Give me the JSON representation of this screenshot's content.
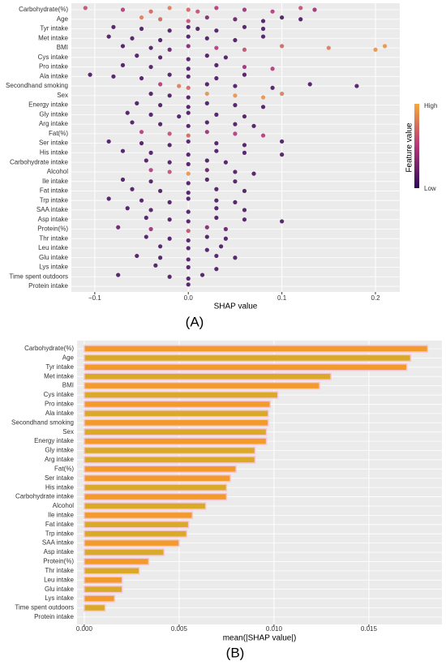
{
  "chart_data": [
    {
      "type": "beeswarm",
      "caption": "(A)",
      "x_label": "SHAP value",
      "categories": [
        "Carbohydrate(%)",
        "Age",
        "Tyr intake",
        "Met intake",
        "BMI",
        "Cys intake",
        "Pro intake",
        "Ala intake",
        "Secondhand smoking",
        "Sex",
        "Energy intake",
        "Gly intake",
        "Arg intake",
        "Fat(%)",
        "Ser intake",
        "His intake",
        "Carbohydrate intake",
        "Alcohol",
        "Ile intake",
        "Fat intake",
        "Trp intake",
        "SAA intake",
        "Asp intake",
        "Protein(%)",
        "Thr intake",
        "Leu intake",
        "Glu intake",
        "Lys intake",
        "Time spent outdoors",
        "Protein intake"
      ],
      "points": [
        {
          "shap": [
            -0.11,
            -0.07,
            -0.04,
            -0.02,
            0,
            0.01,
            0.03,
            0.06,
            0.09,
            0.12,
            0.135
          ],
          "feature_value": [
            0.6,
            0.5,
            0.7,
            0.8,
            0.7,
            0.6,
            0.5,
            0.4,
            0.5,
            0.6,
            0.4
          ]
        },
        {
          "shap": [
            -0.05,
            -0.03,
            0,
            0.02,
            0.05,
            0.08,
            0.1,
            0.12
          ],
          "feature_value": [
            0.8,
            0.7,
            0.6,
            0.3,
            0.2,
            0.1,
            0.1,
            0.1
          ]
        },
        {
          "shap": [
            -0.08,
            -0.05,
            -0.02,
            0,
            0.01,
            0.03,
            0.06,
            0.08
          ],
          "feature_value": [
            0.1,
            0.1,
            0.1,
            0.1,
            0.1,
            0.1,
            0.1,
            0.1
          ]
        },
        {
          "shap": [
            -0.085,
            -0.06,
            -0.03,
            0,
            0.02,
            0.05,
            0.08
          ],
          "feature_value": [
            0.1,
            0.1,
            0.1,
            0.1,
            0.1,
            0.1,
            0.1
          ]
        },
        {
          "shap": [
            -0.07,
            -0.04,
            -0.02,
            0,
            0.03,
            0.06,
            0.1,
            0.15,
            0.2,
            0.21
          ],
          "feature_value": [
            0.1,
            0.1,
            0.2,
            0.3,
            0.5,
            0.6,
            0.7,
            0.8,
            0.9,
            0.9
          ]
        },
        {
          "shap": [
            -0.055,
            -0.03,
            0,
            0.02,
            0.04
          ],
          "feature_value": [
            0.1,
            0.1,
            0.1,
            0.1,
            0.1
          ]
        },
        {
          "shap": [
            -0.07,
            -0.04,
            0,
            0.03,
            0.06,
            0.09
          ],
          "feature_value": [
            0.1,
            0.1,
            0.1,
            0.1,
            0.4,
            0.5
          ]
        },
        {
          "shap": [
            -0.105,
            -0.08,
            -0.05,
            -0.02,
            0,
            0.03,
            0.06
          ],
          "feature_value": [
            0.1,
            0.1,
            0.1,
            0.1,
            0.1,
            0.1,
            0.1
          ]
        },
        {
          "shap": [
            -0.03,
            -0.01,
            0,
            0.02,
            0.05,
            0.09,
            0.13,
            0.18
          ],
          "feature_value": [
            0.5,
            0.8,
            0.7,
            0.1,
            0.1,
            0.1,
            0.1,
            0.1
          ]
        },
        {
          "shap": [
            -0.04,
            -0.02,
            0,
            0.02,
            0.05,
            0.08,
            0.1
          ],
          "feature_value": [
            0.1,
            0.1,
            0.1,
            0.9,
            0.9,
            0.9,
            0.8
          ]
        },
        {
          "shap": [
            -0.055,
            -0.03,
            0,
            0.02,
            0.05,
            0.08
          ],
          "feature_value": [
            0.1,
            0.1,
            0.1,
            0.1,
            0.1,
            0.1
          ]
        },
        {
          "shap": [
            -0.065,
            -0.04,
            -0.01,
            0,
            0.03,
            0.06
          ],
          "feature_value": [
            0.1,
            0.1,
            0.1,
            0.1,
            0.1,
            0.1
          ]
        },
        {
          "shap": [
            -0.06,
            -0.03,
            0,
            0.02,
            0.05,
            0.07
          ],
          "feature_value": [
            0.1,
            0.1,
            0.1,
            0.1,
            0.1,
            0.1
          ]
        },
        {
          "shap": [
            -0.05,
            -0.02,
            0,
            0.02,
            0.05,
            0.08
          ],
          "feature_value": [
            0.5,
            0.6,
            0.7,
            0.4,
            0.5,
            0.5
          ]
        },
        {
          "shap": [
            -0.085,
            -0.05,
            -0.02,
            0,
            0.03,
            0.06,
            0.1
          ],
          "feature_value": [
            0.1,
            0.1,
            0.1,
            0.1,
            0.1,
            0.1,
            0.1
          ]
        },
        {
          "shap": [
            -0.07,
            -0.04,
            0,
            0.03,
            0.06,
            0.1
          ],
          "feature_value": [
            0.1,
            0.1,
            0.1,
            0.1,
            0.1,
            0.1
          ]
        },
        {
          "shap": [
            -0.045,
            -0.02,
            0,
            0.02,
            0.04
          ],
          "feature_value": [
            0.1,
            0.1,
            0.1,
            0.1,
            0.1
          ]
        },
        {
          "shap": [
            -0.04,
            -0.02,
            0,
            0.02,
            0.05,
            0.07
          ],
          "feature_value": [
            0.5,
            0.6,
            0.9,
            0.2,
            0.1,
            0.1
          ]
        },
        {
          "shap": [
            -0.07,
            -0.04,
            0,
            0.02,
            0.05
          ],
          "feature_value": [
            0.1,
            0.1,
            0.1,
            0.1,
            0.1
          ]
        },
        {
          "shap": [
            -0.06,
            -0.03,
            0,
            0.03,
            0.06
          ],
          "feature_value": [
            0.1,
            0.1,
            0.1,
            0.1,
            0.1
          ]
        },
        {
          "shap": [
            -0.085,
            -0.05,
            -0.02,
            0,
            0.03,
            0.05
          ],
          "feature_value": [
            0.1,
            0.1,
            0.1,
            0.1,
            0.1,
            0.1
          ]
        },
        {
          "shap": [
            -0.065,
            -0.04,
            0,
            0.03,
            0.06
          ],
          "feature_value": [
            0.1,
            0.1,
            0.1,
            0.1,
            0.1
          ]
        },
        {
          "shap": [
            -0.045,
            -0.02,
            0,
            0.03,
            0.06,
            0.1
          ],
          "feature_value": [
            0.1,
            0.1,
            0.1,
            0.1,
            0.1,
            0.1
          ]
        },
        {
          "shap": [
            -0.075,
            -0.04,
            0,
            0.02,
            0.04
          ],
          "feature_value": [
            0.2,
            0.4,
            0.6,
            0.3,
            0.2
          ]
        },
        {
          "shap": [
            -0.045,
            -0.02,
            0,
            0.02,
            0.04
          ],
          "feature_value": [
            0.1,
            0.1,
            0.1,
            0.1,
            0.1
          ]
        },
        {
          "shap": [
            -0.03,
            0,
            0.02,
            0.035
          ],
          "feature_value": [
            0.1,
            0.1,
            0.1,
            0.1
          ]
        },
        {
          "shap": [
            -0.055,
            -0.03,
            0,
            0.03,
            0.05
          ],
          "feature_value": [
            0.1,
            0.1,
            0.1,
            0.1,
            0.1
          ]
        },
        {
          "shap": [
            -0.035,
            0,
            0.03
          ],
          "feature_value": [
            0.1,
            0.1,
            0.1
          ]
        },
        {
          "shap": [
            -0.075,
            -0.02,
            0,
            0.015
          ],
          "feature_value": [
            0.1,
            0.1,
            0.1,
            0.1
          ]
        },
        {
          "shap": [
            0
          ],
          "feature_value": [
            0.1
          ]
        }
      ],
      "colormap": [
        "#2d0b59",
        "#b5367a",
        "#f7a83a"
      ],
      "legend": {
        "title": "Feature value",
        "high": "High",
        "low": "Low"
      },
      "xlim": [
        -0.125,
        0.226
      ],
      "xticks": [
        {
          "value": -0.1,
          "label": "−0.1"
        },
        {
          "value": 0,
          "label": "0.0"
        },
        {
          "value": 0.1,
          "label": "0.1"
        },
        {
          "value": 0.2,
          "label": "0.2"
        }
      ],
      "grid": true
    },
    {
      "type": "barh",
      "caption": "(B)",
      "x_label": "mean(|SHAP value|)",
      "categories": [
        "Carbohydrate(%)",
        "Age",
        "Tyr intake",
        "Met intake",
        "BMI",
        "Cys intake",
        "Pro intake",
        "Ala intake",
        "Secondhand smoking",
        "Sex",
        "Energy intake",
        "Gly intake",
        "Arg intake",
        "Fat(%)",
        "Ser intake",
        "His intake",
        "Carbohydrate intake",
        "Alcohol",
        "Ile intake",
        "Fat intake",
        "Trp intake",
        "SAA intake",
        "Asp intake",
        "Protein(%)",
        "Thr intake",
        "Leu intake",
        "Glu intake",
        "Lys intake",
        "Time spent outdoors",
        "Protein intake"
      ],
      "values": [
        0.0181,
        0.0172,
        0.017,
        0.013,
        0.0124,
        0.0102,
        0.0098,
        0.0097,
        0.0097,
        0.0096,
        0.0096,
        0.009,
        0.009,
        0.008,
        0.0077,
        0.0075,
        0.0075,
        0.0064,
        0.0057,
        0.0055,
        0.0054,
        0.005,
        0.0042,
        0.0034,
        0.0029,
        0.002,
        0.002,
        0.0016,
        0.0011,
        0
      ],
      "colors": [
        "#f29b2a",
        "#d9a928",
        "#f29b2a",
        "#d9a928",
        "#f29b2a",
        "#d9a928",
        "#f29b2a",
        "#d9a928",
        "#f29b2a",
        "#d9a928",
        "#f29b2a",
        "#d9a928",
        "#d9a928",
        "#f29b2a",
        "#f29b2a",
        "#d9a928",
        "#f29b2a",
        "#d9a928",
        "#f29b2a",
        "#d9a928",
        "#d9a928",
        "#f29b2a",
        "#d9a928",
        "#f29b2a",
        "#d9a928",
        "#f29b2a",
        "#d9a928",
        "#f29b2a",
        "#d9a928",
        "#d9a928"
      ],
      "xlim": [
        -0.00038,
        0.01885
      ],
      "xticks": [
        {
          "value": 0,
          "label": "0.000"
        },
        {
          "value": 0.005,
          "label": "0.005"
        },
        {
          "value": 0.01,
          "label": "0.010"
        },
        {
          "value": 0.015,
          "label": "0.015"
        }
      ],
      "grid": true
    }
  ]
}
